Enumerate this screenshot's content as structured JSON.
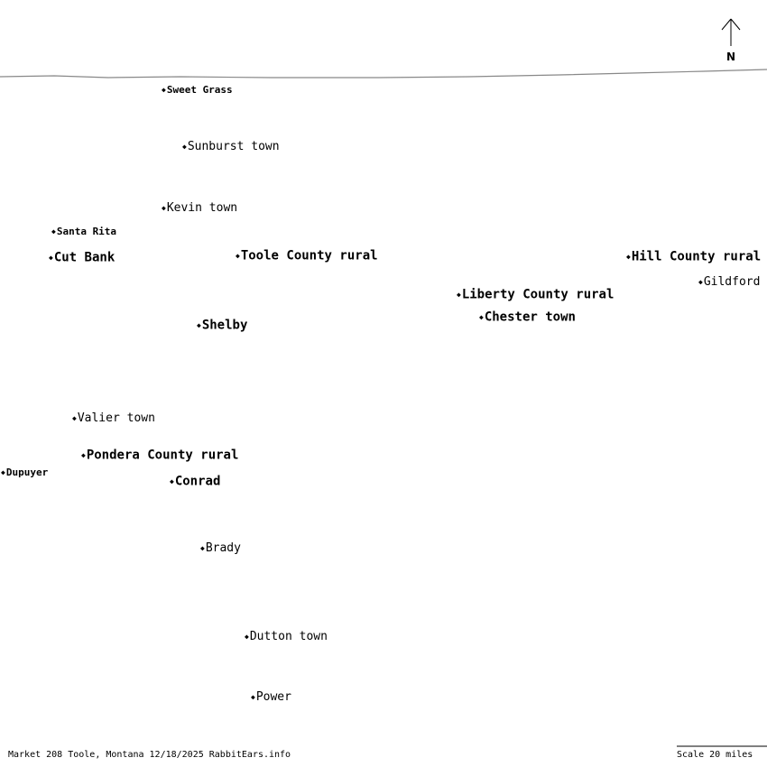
{
  "map": {
    "compass_label": "N",
    "caption": "Market 208 Toole, Montana 12/18/2025 RabbitEars.info",
    "scale_label": "Scale 20 miles"
  },
  "places": [
    {
      "name": "Sweet Grass"
    },
    {
      "name": "Sunburst town"
    },
    {
      "name": "Kevin town"
    },
    {
      "name": "Santa Rita"
    },
    {
      "name": "Cut Bank"
    },
    {
      "name": "Toole County rural"
    },
    {
      "name": "Hill County rural"
    },
    {
      "name": "Gildford"
    },
    {
      "name": "Liberty County rural"
    },
    {
      "name": "Chester town"
    },
    {
      "name": "Shelby"
    },
    {
      "name": "Valier town"
    },
    {
      "name": "Pondera County rural"
    },
    {
      "name": "Dupuyer"
    },
    {
      "name": "Conrad"
    },
    {
      "name": "Brady"
    },
    {
      "name": "Dutton town"
    },
    {
      "name": "Power"
    }
  ]
}
